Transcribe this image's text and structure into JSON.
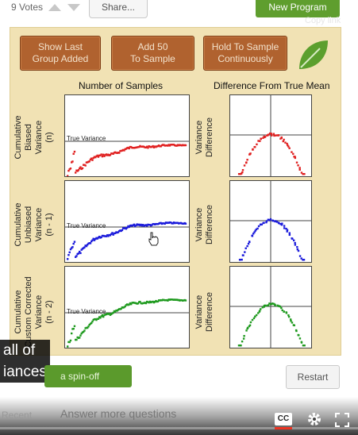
{
  "header": {
    "votes_label": "9 Votes",
    "share_label": "Share...",
    "new_program_label": "New Program",
    "copy_link_label": "Copy link"
  },
  "panel": {
    "buttons": [
      {
        "line1": "Show Last",
        "line2": "Group Added"
      },
      {
        "line1": "Add 50",
        "line2": "To Sample"
      },
      {
        "line1": "Hold To Sample",
        "line2": "Continuously"
      }
    ],
    "col_left_title": "Number of Samples",
    "col_right_title": "Difference From True Mean",
    "rows": [
      {
        "label": [
          "Cumulative",
          "Biased",
          "Variance",
          "(n)"
        ],
        "color": "#e02020",
        "right_label": [
          "Variance",
          "Difference"
        ]
      },
      {
        "label": [
          "Cumulative",
          "Unbiased",
          "Variance",
          "(n - 1)"
        ],
        "color": "#1a1adb",
        "right_label": [
          "Variance",
          "Difference"
        ]
      },
      {
        "label": [
          "Cumulative",
          "Custom Corrected",
          "Variance",
          "(n - 2)"
        ],
        "color": "#1f9a1f",
        "right_label": [
          "Variance",
          "Difference"
        ]
      }
    ],
    "true_variance_label": "True Variance"
  },
  "caption": {
    "line1": "all of",
    "line2": "iances"
  },
  "spinoff_label": "a spin-off",
  "restart_label": "Restart",
  "footer": {
    "recent_label": "Recent",
    "answer_label": "Answer more questions",
    "cc_label": "CC"
  },
  "colors": {
    "panel_bg": "#f1e2b4",
    "button_bg": "#b0622f",
    "green_button": "#5b9a2c",
    "red": "#e02020",
    "blue": "#1a1adb",
    "green": "#1f9a1f"
  }
}
